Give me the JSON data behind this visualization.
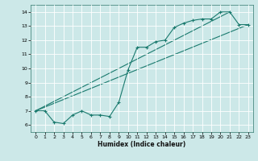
{
  "title": "",
  "xlabel": "Humidex (Indice chaleur)",
  "ylabel": "",
  "xlim": [
    -0.5,
    23.5
  ],
  "ylim": [
    5.5,
    14.5
  ],
  "xticks": [
    0,
    1,
    2,
    3,
    4,
    5,
    6,
    7,
    8,
    9,
    10,
    11,
    12,
    13,
    14,
    15,
    16,
    17,
    18,
    19,
    20,
    21,
    22,
    23
  ],
  "yticks": [
    6,
    7,
    8,
    9,
    10,
    11,
    12,
    13,
    14
  ],
  "bg_color": "#cce8e8",
  "line_color": "#1a7a6e",
  "grid_color": "#ffffff",
  "line1_x": [
    0,
    1,
    2,
    3,
    4,
    5,
    6,
    7,
    8,
    9,
    10,
    11,
    12,
    13,
    14,
    15,
    16,
    17,
    18,
    19,
    20,
    21,
    22,
    23
  ],
  "line1_y": [
    7.0,
    7.0,
    6.2,
    6.1,
    6.7,
    7.0,
    6.7,
    6.7,
    6.6,
    7.6,
    9.9,
    11.5,
    11.5,
    11.9,
    12.0,
    12.9,
    13.2,
    13.4,
    13.5,
    13.5,
    14.0,
    14.0,
    13.1,
    13.1
  ],
  "line2_x": [
    0,
    23
  ],
  "line2_y": [
    7.0,
    13.1
  ],
  "line3_x": [
    0,
    21
  ],
  "line3_y": [
    7.0,
    14.0
  ]
}
